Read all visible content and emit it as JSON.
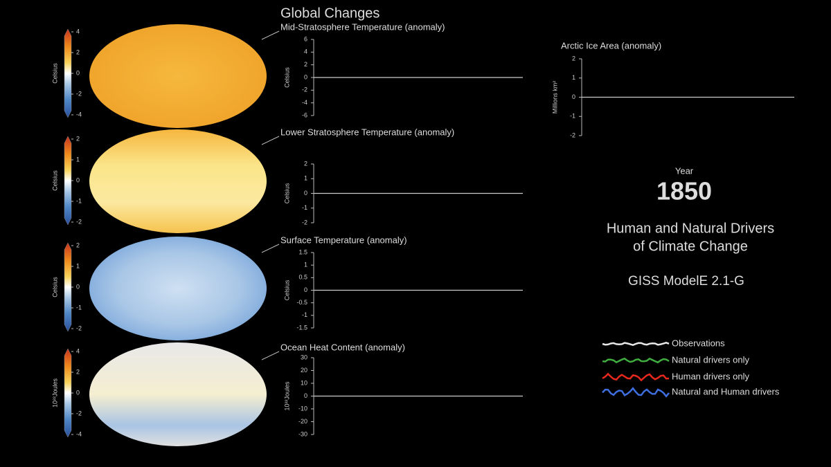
{
  "title": "Global Changes",
  "maps": [
    {
      "colorbar_label": "Celsius",
      "colorbar_ticks": [
        4,
        2,
        0,
        -2,
        -4
      ]
    },
    {
      "colorbar_label": "Celsius",
      "colorbar_ticks": [
        2,
        1,
        0,
        -1,
        -2
      ]
    },
    {
      "colorbar_label": "Celsius",
      "colorbar_ticks": [
        2,
        1,
        0,
        -1,
        -2
      ]
    },
    {
      "colorbar_label": "10²²Joules",
      "colorbar_ticks": [
        4,
        2,
        0,
        -2,
        -4
      ]
    }
  ],
  "chart_data": [
    {
      "type": "line",
      "title": "Mid-Stratosphere Temperature (anomaly)",
      "y_label": "Celsius",
      "ylim": [
        -6,
        6
      ],
      "yticks": [
        -6,
        -4,
        -2,
        0,
        2,
        4,
        6
      ],
      "baseline": 0
    },
    {
      "type": "line",
      "title": "Lower Stratosphere Temperature (anomaly)",
      "y_label": "Celsius",
      "ylim": [
        -2,
        2
      ],
      "yticks": [
        -2,
        -1,
        0,
        1,
        2
      ],
      "baseline": 0
    },
    {
      "type": "line",
      "title": "Surface Temperature (anomaly)",
      "y_label": "Celsius",
      "ylim": [
        -1.5,
        1.5
      ],
      "yticks": [
        -1.5,
        -1,
        -0.5,
        0,
        0.5,
        1,
        1.5
      ],
      "baseline": 0
    },
    {
      "type": "line",
      "title": "Ocean Heat Content (anomaly)",
      "y_label": "10²²Joules",
      "ylim": [
        -30,
        30
      ],
      "yticks": [
        -30,
        -20,
        -10,
        0,
        10,
        20,
        30
      ],
      "baseline": 0
    },
    {
      "type": "line",
      "title": "Arctic Ice Area (anomaly)",
      "y_label": "Millions km²",
      "ylim": [
        -2,
        2
      ],
      "yticks": [
        -2,
        -1,
        0,
        1,
        2
      ],
      "baseline": 0
    }
  ],
  "year_label": "Year",
  "year": 1850,
  "subtitle": [
    "Human and Natural Drivers",
    "of Climate Change"
  ],
  "model": "GISS ModelE 2.1-G",
  "legend": [
    {
      "name": "Observations",
      "color": "#e8e8e8"
    },
    {
      "name": "Natural drivers only",
      "color": "#3fae3f"
    },
    {
      "name": "Human drivers only",
      "color": "#e8281c"
    },
    {
      "name": "Natural and Human drivers",
      "color": "#3d6fe0"
    }
  ]
}
